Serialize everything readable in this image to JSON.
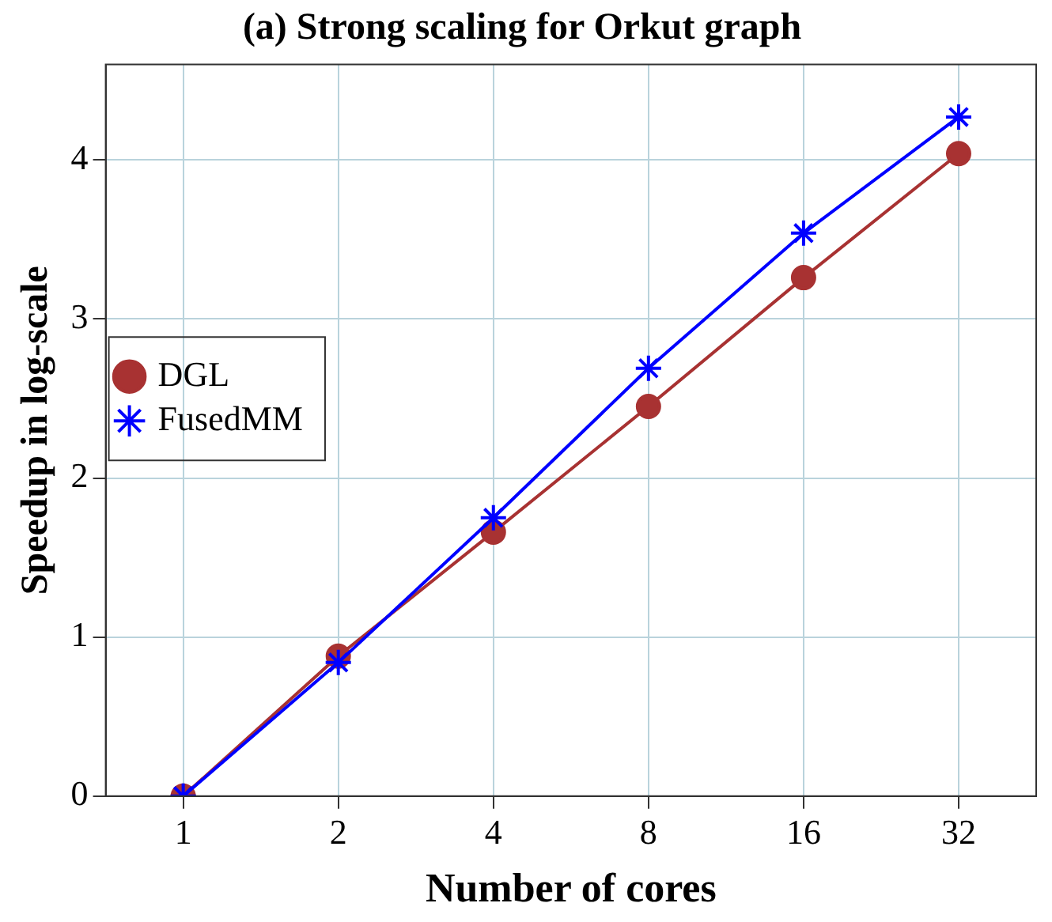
{
  "chart_data": {
    "type": "line",
    "title": "(a) Strong scaling for Orkut graph",
    "xlabel": "Number of cores",
    "ylabel": "Speedup in log-scale",
    "categories": [
      "1",
      "2",
      "4",
      "8",
      "16",
      "32"
    ],
    "series": [
      {
        "name": "DGL",
        "color": "#a83232",
        "marker": "circle",
        "values": [
          0,
          0.88,
          1.66,
          2.45,
          3.26,
          4.04
        ]
      },
      {
        "name": "FusedMM",
        "color": "#0000ff",
        "marker": "cross",
        "values": [
          0,
          0.84,
          1.75,
          2.69,
          3.54,
          4.27
        ]
      }
    ],
    "ylim": [
      0,
      4.6
    ],
    "yticks": [
      0,
      1,
      2,
      3,
      4
    ],
    "grid": true,
    "legend": "left"
  }
}
